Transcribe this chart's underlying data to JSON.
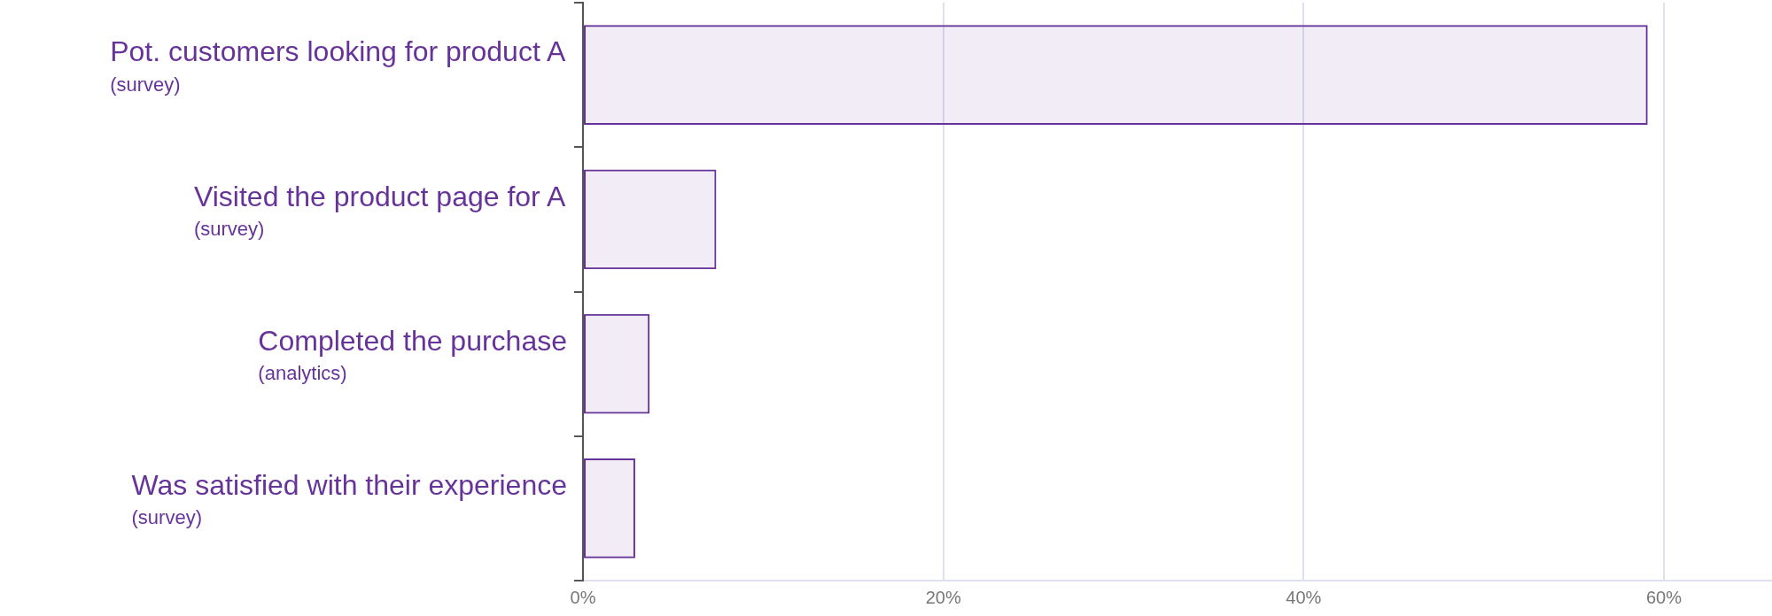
{
  "chart_data": {
    "type": "bar",
    "orientation": "horizontal",
    "categories": [
      "Pot. customers looking for product A\n(survey)",
      "Visited the product page for A\n(survey)",
      "Completed the purchase\n(analytics)",
      "Was satisfied with their experience\n(survey)"
    ],
    "values": [
      59.1,
      7.4,
      3.7,
      2.9
    ],
    "color": "#663399",
    "xlim": [
      0,
      66
    ],
    "xticks": [
      {
        "value": 0,
        "label": "0%"
      },
      {
        "value": 20,
        "label": "20%"
      },
      {
        "value": 40,
        "label": "40%"
      },
      {
        "value": 60,
        "label": "60%"
      }
    ],
    "grid": "x"
  }
}
